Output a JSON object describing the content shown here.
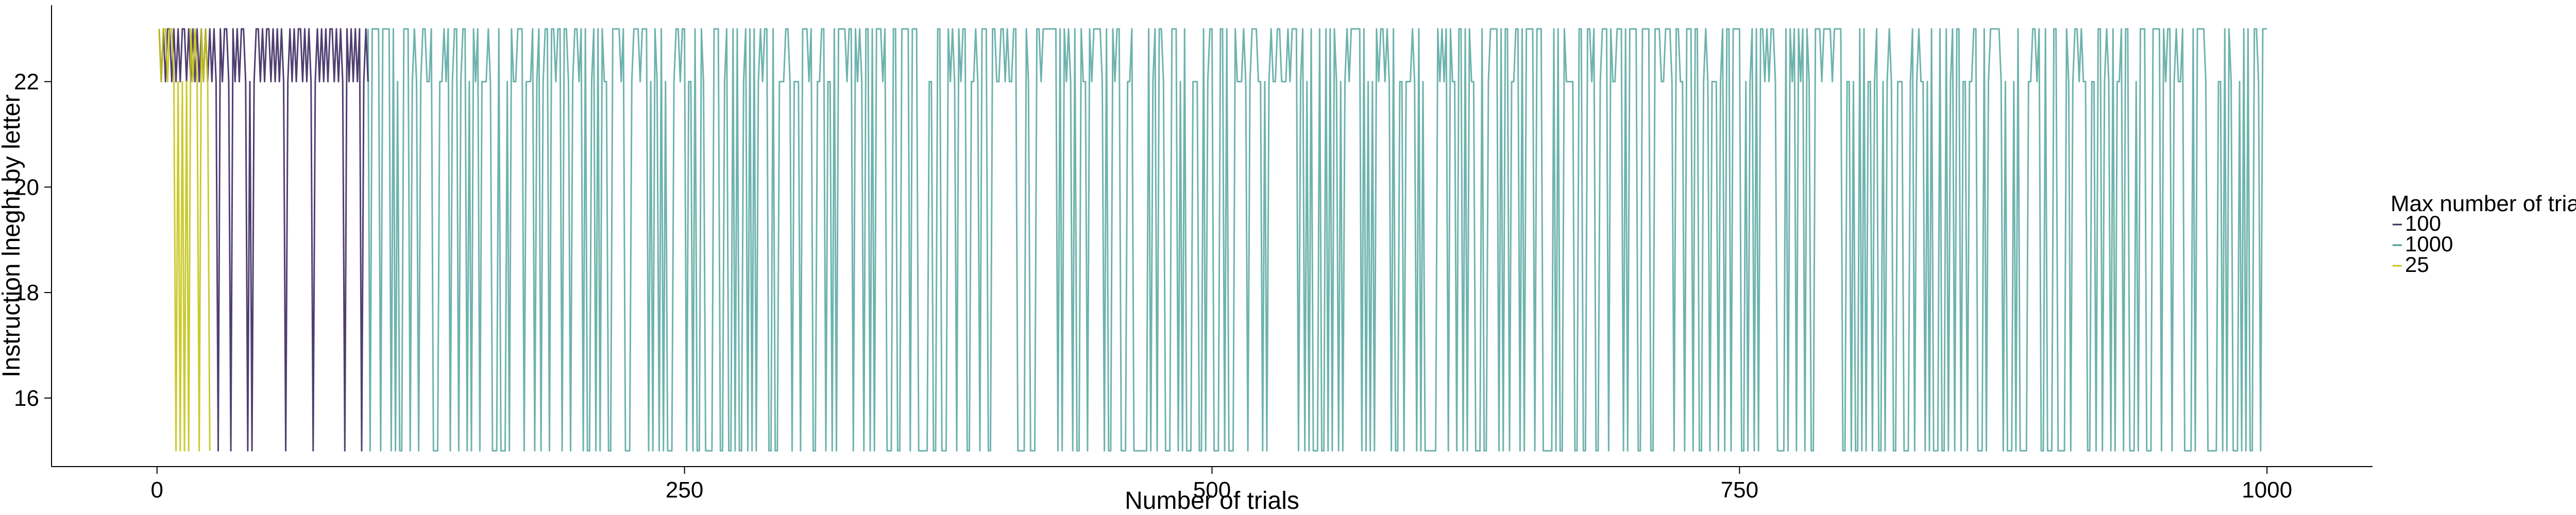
{
  "chart_data": {
    "type": "line",
    "title": "",
    "xlabel": "Number of trials",
    "ylabel": "Instruction lneght by letter",
    "xlim": [
      -50,
      1050
    ],
    "ylim": [
      14.7,
      23.45
    ],
    "x_ticks": [
      0,
      250,
      500,
      750,
      1000
    ],
    "x_tick_labels": [
      "0",
      "250",
      "500",
      "750",
      "1000"
    ],
    "y_ticks": [
      16,
      18,
      20,
      22
    ],
    "y_tick_labels": [
      "16",
      "18",
      "20",
      "22"
    ],
    "grid": false,
    "legend": {
      "title": "Max number of trials",
      "placement": "right",
      "entries": [
        "100",
        "1000",
        "25"
      ]
    },
    "colors": {
      "100": "#3d2a62",
      "1000": "#3e9a92",
      "25": "#c5c41a"
    },
    "series": [
      {
        "name": "25",
        "x": [
          1,
          2,
          3,
          4,
          5,
          6,
          7,
          8,
          9,
          10,
          11,
          12,
          13,
          14,
          15,
          16,
          17,
          18,
          19,
          20,
          21,
          22,
          23,
          24,
          25
        ],
        "values": [
          23,
          22,
          23,
          23,
          22,
          23,
          23,
          22,
          15,
          22,
          15,
          22,
          15,
          22,
          15,
          23,
          22,
          23,
          22,
          15,
          23,
          22,
          23,
          22,
          15
        ]
      },
      {
        "name": "100",
        "x": [
          1,
          2,
          3,
          4,
          5,
          6,
          7,
          8,
          9,
          10,
          11,
          12,
          13,
          14,
          15,
          16,
          17,
          18,
          19,
          20,
          21,
          22,
          23,
          24,
          25,
          26,
          27,
          28,
          29,
          30,
          31,
          32,
          33,
          34,
          35,
          36,
          37,
          38,
          39,
          40,
          41,
          42,
          43,
          44,
          45,
          46,
          47,
          48,
          49,
          50,
          51,
          52,
          53,
          54,
          55,
          56,
          57,
          58,
          59,
          60,
          61,
          62,
          63,
          64,
          65,
          66,
          67,
          68,
          69,
          70,
          71,
          72,
          73,
          74,
          75,
          76,
          77,
          78,
          79,
          80,
          81,
          82,
          83,
          84,
          85,
          86,
          87,
          88,
          89,
          90,
          91,
          92,
          93,
          94,
          95,
          96,
          97,
          98,
          99,
          100
        ],
        "values": [
          23,
          22,
          23,
          22,
          23,
          23,
          22,
          23,
          22,
          23,
          22,
          23,
          23,
          22,
          23,
          22,
          23,
          22,
          23,
          22,
          23,
          22,
          23,
          22,
          23,
          22,
          23,
          22,
          15,
          23,
          22,
          23,
          23,
          22,
          15,
          23,
          22,
          23,
          22,
          23,
          23,
          22,
          15,
          22,
          15,
          22,
          23,
          23,
          22,
          23,
          22,
          23,
          23,
          22,
          23,
          22,
          23,
          22,
          23,
          22,
          15,
          22,
          23,
          22,
          23,
          22,
          23,
          23,
          22,
          23,
          22,
          23,
          22,
          15,
          22,
          23,
          22,
          23,
          22,
          23,
          22,
          23,
          23,
          22,
          23,
          22,
          23,
          22,
          15,
          23,
          22,
          23,
          22,
          23,
          22,
          23,
          15,
          22,
          23,
          22
        ]
      },
      {
        "name": "1000",
        "generated_from": "dense oscillation between 15, 22 and 23 over trials 100–1000"
      }
    ]
  }
}
